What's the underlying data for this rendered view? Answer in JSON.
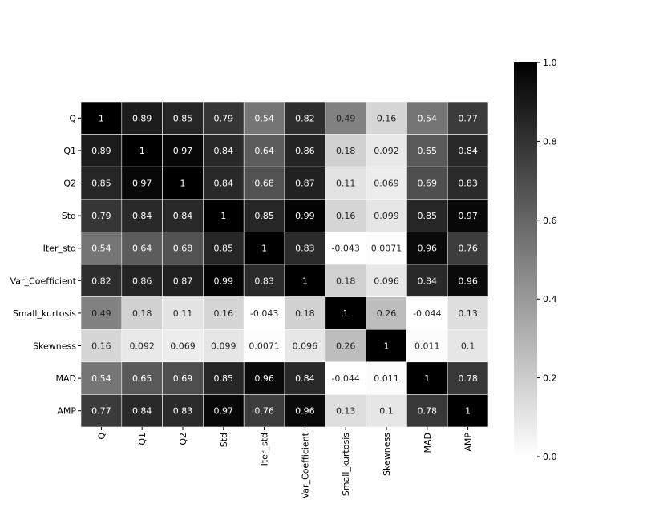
{
  "chart_data": {
    "type": "heatmap",
    "title": "",
    "xlabel": "",
    "ylabel": "",
    "colormap": "Greys",
    "vmin": 0.0,
    "vmax": 1.0,
    "grid": true,
    "row_labels": [
      "Q",
      "Q1",
      "Q2",
      "Std",
      "Iter_std",
      "Var_Coefficient",
      "Small_kurtosis",
      "Skewness",
      "MAD",
      "AMP"
    ],
    "col_labels": [
      "Q",
      "Q1",
      "Q2",
      "Std",
      "Iter_std",
      "Var_Coefficient",
      "Small_kurtosis",
      "Skewness",
      "MAD",
      "AMP"
    ],
    "values": [
      [
        1,
        0.89,
        0.85,
        0.79,
        0.54,
        0.82,
        0.49,
        0.16,
        0.54,
        0.77
      ],
      [
        0.89,
        1,
        0.97,
        0.84,
        0.64,
        0.86,
        0.18,
        0.092,
        0.65,
        0.84
      ],
      [
        0.85,
        0.97,
        1,
        0.84,
        0.68,
        0.87,
        0.11,
        0.069,
        0.69,
        0.83
      ],
      [
        0.79,
        0.84,
        0.84,
        1,
        0.85,
        0.99,
        0.16,
        0.099,
        0.85,
        0.97
      ],
      [
        0.54,
        0.64,
        0.68,
        0.85,
        1,
        0.83,
        -0.043,
        0.0071,
        0.96,
        0.76
      ],
      [
        0.82,
        0.86,
        0.87,
        0.99,
        0.83,
        1,
        0.18,
        0.096,
        0.84,
        0.96
      ],
      [
        0.49,
        0.18,
        0.11,
        0.16,
        -0.043,
        0.18,
        1,
        0.26,
        -0.044,
        0.13
      ],
      [
        0.16,
        0.092,
        0.069,
        0.099,
        0.0071,
        0.096,
        0.26,
        1,
        0.011,
        0.1
      ],
      [
        0.54,
        0.65,
        0.69,
        0.85,
        0.96,
        0.84,
        -0.044,
        0.011,
        1,
        0.78
      ],
      [
        0.77,
        0.84,
        0.83,
        0.97,
        0.76,
        0.96,
        0.13,
        0.1,
        0.78,
        1
      ]
    ],
    "value_labels": [
      [
        "1",
        "0.89",
        "0.85",
        "0.79",
        "0.54",
        "0.82",
        "0.49",
        "0.16",
        "0.54",
        "0.77"
      ],
      [
        "0.89",
        "1",
        "0.97",
        "0.84",
        "0.64",
        "0.86",
        "0.18",
        "0.092",
        "0.65",
        "0.84"
      ],
      [
        "0.85",
        "0.97",
        "1",
        "0.84",
        "0.68",
        "0.87",
        "0.11",
        "0.069",
        "0.69",
        "0.83"
      ],
      [
        "0.79",
        "0.84",
        "0.84",
        "1",
        "0.85",
        "0.99",
        "0.16",
        "0.099",
        "0.85",
        "0.97"
      ],
      [
        "0.54",
        "0.64",
        "0.68",
        "0.85",
        "1",
        "0.83",
        "-0.043",
        "0.0071",
        "0.96",
        "0.76"
      ],
      [
        "0.82",
        "0.86",
        "0.87",
        "0.99",
        "0.83",
        "1",
        "0.18",
        "0.096",
        "0.84",
        "0.96"
      ],
      [
        "0.49",
        "0.18",
        "0.11",
        "0.16",
        "-0.043",
        "0.18",
        "1",
        "0.26",
        "-0.044",
        "0.13"
      ],
      [
        "0.16",
        "0.092",
        "0.069",
        "0.099",
        "0.0071",
        "0.096",
        "0.26",
        "1",
        "0.011",
        "0.1"
      ],
      [
        "0.54",
        "0.65",
        "0.69",
        "0.85",
        "0.96",
        "0.84",
        "-0.044",
        "0.011",
        "1",
        "0.78"
      ],
      [
        "0.77",
        "0.84",
        "0.83",
        "0.97",
        "0.76",
        "0.96",
        "0.13",
        "0.1",
        "0.78",
        "1"
      ]
    ],
    "colorbar": {
      "ticks": [
        0.0,
        0.2,
        0.4,
        0.6,
        0.8,
        1.0
      ],
      "tick_labels": [
        "0.0",
        "0.2",
        "0.4",
        "0.6",
        "0.8",
        "1.0"
      ]
    }
  }
}
